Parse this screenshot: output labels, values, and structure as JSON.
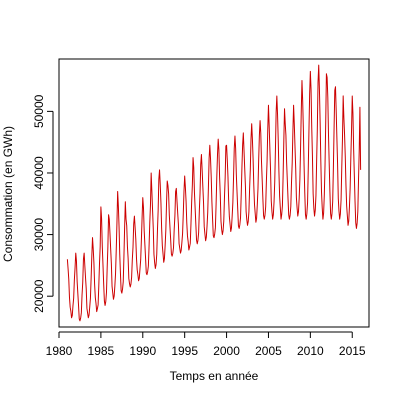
{
  "chart_data": {
    "type": "line",
    "title": "",
    "xlabel": "Temps en année",
    "ylabel": "Consommation (en GWh)",
    "xlim": [
      1980,
      2017
    ],
    "ylim": [
      15000,
      58500
    ],
    "x_ticks": [
      1980,
      1985,
      1990,
      1995,
      2000,
      2005,
      2010,
      2015
    ],
    "x_tick_labels": [
      "1980",
      "1985",
      "1990",
      "1995",
      "2000",
      "2005",
      "2010",
      "2015"
    ],
    "y_ticks": [
      20000,
      30000,
      40000,
      50000
    ],
    "y_tick_labels": [
      "20000",
      "30000",
      "40000",
      "50000"
    ],
    "grid": false,
    "legend": "none",
    "frequency": "monthly",
    "start": "1981-01",
    "end": "2016-01",
    "series": [
      {
        "name": "",
        "color": "#cc0000",
        "annual_peaks": [
          {
            "year": 1981,
            "value": 26000
          },
          {
            "year": 1982,
            "value": 27000
          },
          {
            "year": 1983,
            "value": 27000
          },
          {
            "year": 1984,
            "value": 29500
          },
          {
            "year": 1985,
            "value": 34500
          },
          {
            "year": 1986,
            "value": 32500
          },
          {
            "year": 1987,
            "value": 37000
          },
          {
            "year": 1988,
            "value": 32500
          },
          {
            "year": 1989,
            "value": 33000
          },
          {
            "year": 1990,
            "value": 36000
          },
          {
            "year": 1991,
            "value": 40000
          },
          {
            "year": 1992,
            "value": 40500
          },
          {
            "year": 1993,
            "value": 38000
          },
          {
            "year": 1994,
            "value": 37500
          },
          {
            "year": 1995,
            "value": 39500
          },
          {
            "year": 1996,
            "value": 42500
          },
          {
            "year": 1997,
            "value": 43000
          },
          {
            "year": 1998,
            "value": 44500
          },
          {
            "year": 1999,
            "value": 45500
          },
          {
            "year": 2000,
            "value": 44500
          },
          {
            "year": 2001,
            "value": 46000
          },
          {
            "year": 2002,
            "value": 46500
          },
          {
            "year": 2003,
            "value": 48000
          },
          {
            "year": 2004,
            "value": 48500
          },
          {
            "year": 2005,
            "value": 51000
          },
          {
            "year": 2006,
            "value": 52500
          },
          {
            "year": 2007,
            "value": 48000
          },
          {
            "year": 2008,
            "value": 51000
          },
          {
            "year": 2009,
            "value": 55000
          },
          {
            "year": 2010,
            "value": 56500
          },
          {
            "year": 2011,
            "value": 57500
          },
          {
            "year": 2012,
            "value": 55500
          },
          {
            "year": 2013,
            "value": 54000
          },
          {
            "year": 2014,
            "value": 49000
          },
          {
            "year": 2015,
            "value": 52500
          },
          {
            "year": 2016,
            "value": 40500
          }
        ],
        "annual_troughs": [
          {
            "year": 1981,
            "value": 16500
          },
          {
            "year": 1982,
            "value": 16000
          },
          {
            "year": 1983,
            "value": 16500
          },
          {
            "year": 1984,
            "value": 17500
          },
          {
            "year": 1985,
            "value": 18500
          },
          {
            "year": 1986,
            "value": 19500
          },
          {
            "year": 1987,
            "value": 20500
          },
          {
            "year": 1988,
            "value": 21500
          },
          {
            "year": 1989,
            "value": 22500
          },
          {
            "year": 1990,
            "value": 23500
          },
          {
            "year": 1991,
            "value": 24500
          },
          {
            "year": 1992,
            "value": 25500
          },
          {
            "year": 1993,
            "value": 26500
          },
          {
            "year": 1994,
            "value": 27000
          },
          {
            "year": 1995,
            "value": 27500
          },
          {
            "year": 1996,
            "value": 28500
          },
          {
            "year": 1997,
            "value": 29000
          },
          {
            "year": 1998,
            "value": 29500
          },
          {
            "year": 1999,
            "value": 30000
          },
          {
            "year": 2000,
            "value": 30500
          },
          {
            "year": 2001,
            "value": 31000
          },
          {
            "year": 2002,
            "value": 31500
          },
          {
            "year": 2003,
            "value": 32000
          },
          {
            "year": 2004,
            "value": 32500
          },
          {
            "year": 2005,
            "value": 32500
          },
          {
            "year": 2006,
            "value": 32500
          },
          {
            "year": 2007,
            "value": 32500
          },
          {
            "year": 2008,
            "value": 33000
          },
          {
            "year": 2009,
            "value": 32500
          },
          {
            "year": 2010,
            "value": 33000
          },
          {
            "year": 2011,
            "value": 32500
          },
          {
            "year": 2012,
            "value": 32500
          },
          {
            "year": 2013,
            "value": 32500
          },
          {
            "year": 2014,
            "value": 31500
          },
          {
            "year": 2015,
            "value": 31000
          },
          {
            "year": 2016,
            "value": 25500
          }
        ]
      }
    ]
  }
}
